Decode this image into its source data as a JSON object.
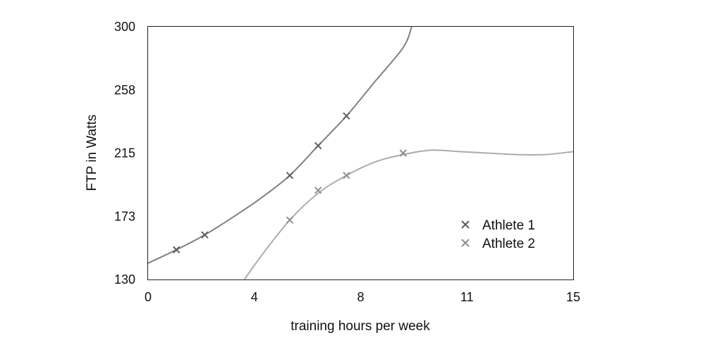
{
  "chart_data": {
    "type": "scatter",
    "xlabel": "training hours per week",
    "ylabel": "FTP in Watts",
    "xlim": [
      0,
      15
    ],
    "ylim": [
      130,
      300
    ],
    "x_ticks": [
      "0",
      "4",
      "8",
      "11",
      "15"
    ],
    "x_tick_values": [
      0,
      3.75,
      7.5,
      11.25,
      15
    ],
    "y_ticks": [
      "130",
      "173",
      "215",
      "258",
      "300"
    ],
    "y_tick_values": [
      130,
      172.5,
      215,
      257.5,
      300
    ],
    "grid": false,
    "legend_position": "lower-right",
    "marker": "x",
    "series": [
      {
        "name": "Athlete 1",
        "color": "#5a5f68",
        "line_color": "#7e8188",
        "points": [
          {
            "x": 1.0,
            "y": 150
          },
          {
            "x": 2.0,
            "y": 160
          },
          {
            "x": 5.0,
            "y": 200
          },
          {
            "x": 6.0,
            "y": 220
          },
          {
            "x": 7.0,
            "y": 240
          }
        ],
        "fit_curve": [
          {
            "x": 0,
            "y": 141
          },
          {
            "x": 1,
            "y": 150
          },
          {
            "x": 2,
            "y": 160
          },
          {
            "x": 3,
            "y": 172
          },
          {
            "x": 4,
            "y": 185
          },
          {
            "x": 5,
            "y": 200
          },
          {
            "x": 6,
            "y": 220
          },
          {
            "x": 7,
            "y": 240
          },
          {
            "x": 8,
            "y": 263
          },
          {
            "x": 9,
            "y": 286
          },
          {
            "x": 9.3,
            "y": 300
          }
        ]
      },
      {
        "name": "Athlete 2",
        "color": "#8a8f98",
        "line_color": "#a9acb3",
        "points": [
          {
            "x": 5.0,
            "y": 170
          },
          {
            "x": 6.0,
            "y": 190
          },
          {
            "x": 7.0,
            "y": 200
          },
          {
            "x": 9.0,
            "y": 215
          }
        ],
        "fit_curve": [
          {
            "x": 3.4,
            "y": 130
          },
          {
            "x": 4,
            "y": 146
          },
          {
            "x": 5,
            "y": 170
          },
          {
            "x": 6,
            "y": 188
          },
          {
            "x": 7,
            "y": 200
          },
          {
            "x": 8,
            "y": 209
          },
          {
            "x": 9,
            "y": 214
          },
          {
            "x": 10,
            "y": 217
          },
          {
            "x": 11,
            "y": 216
          },
          {
            "x": 12,
            "y": 215
          },
          {
            "x": 13,
            "y": 214
          },
          {
            "x": 14,
            "y": 214
          },
          {
            "x": 15,
            "y": 216
          }
        ]
      }
    ]
  }
}
